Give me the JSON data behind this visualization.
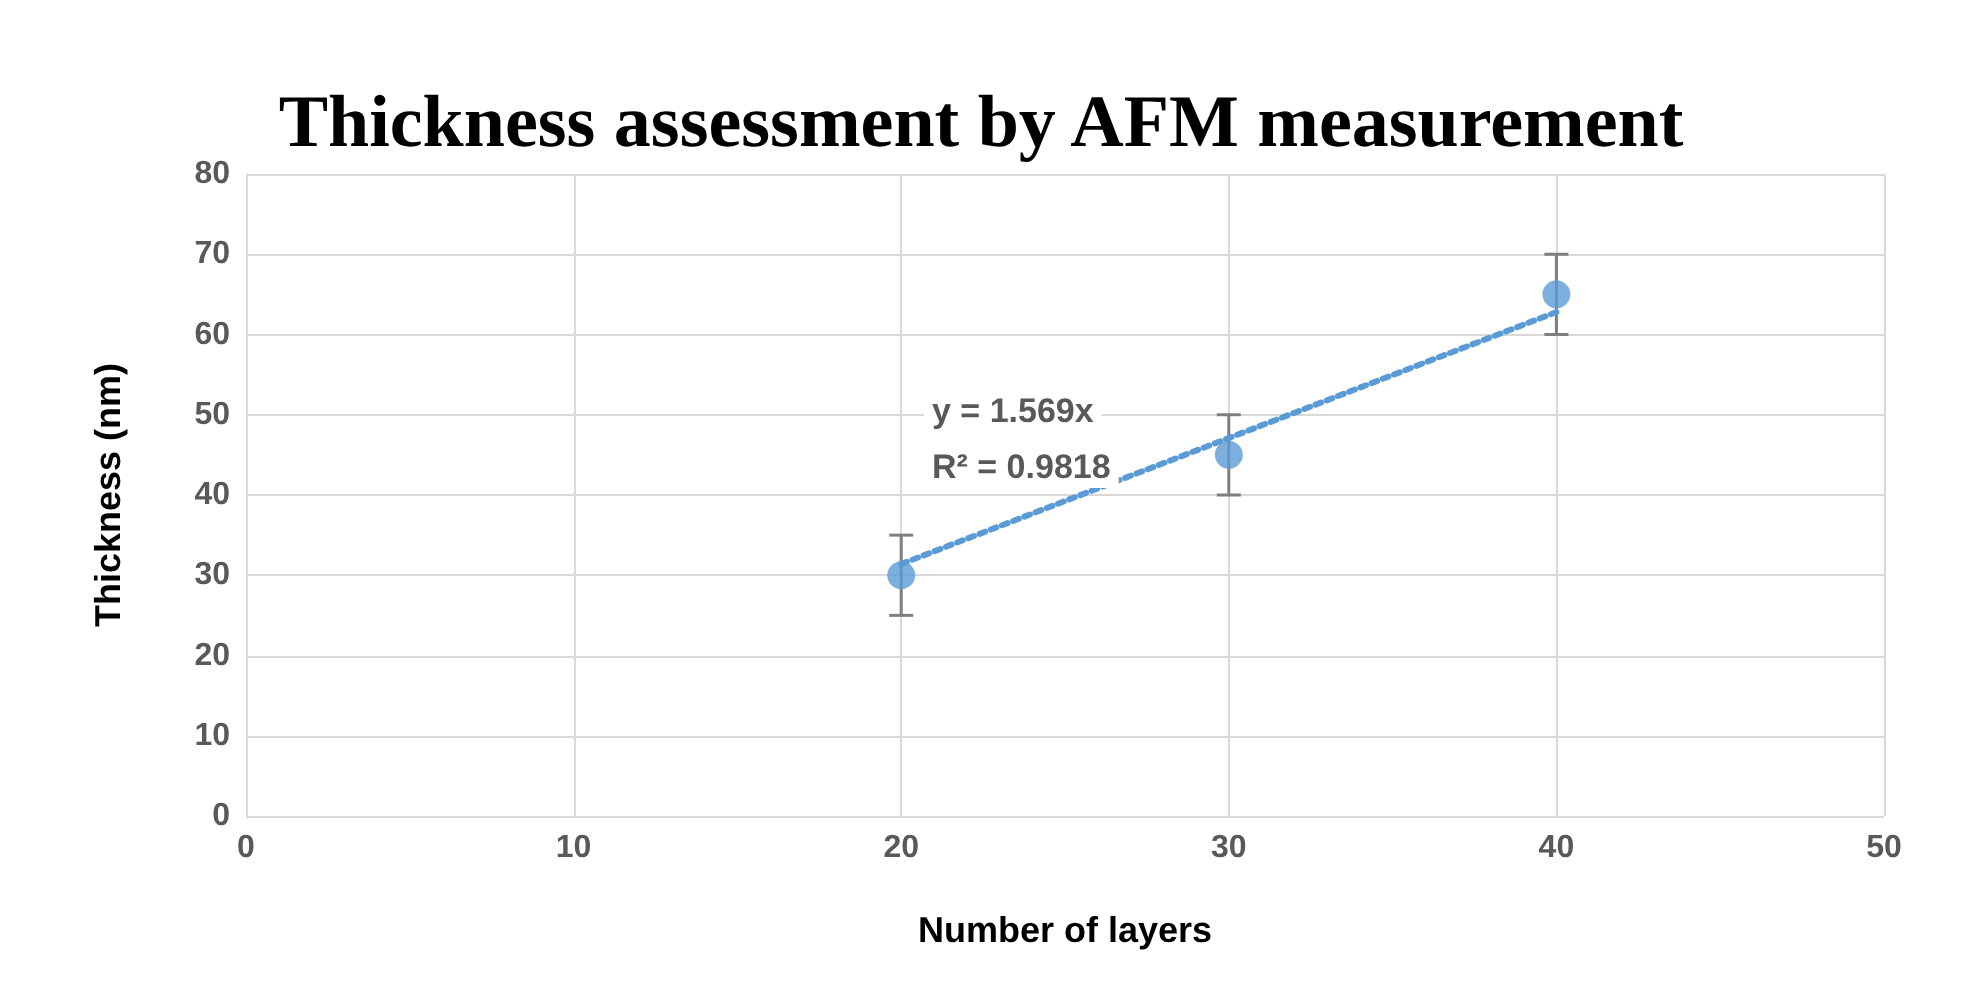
{
  "chart_data": {
    "type": "scatter",
    "title": "Thickness assessment by AFM measurement",
    "xlabel": "Number of layers",
    "ylabel": "Thickness (nm)",
    "xlim": [
      0,
      50
    ],
    "xticks": [
      0,
      10,
      20,
      30,
      40,
      50
    ],
    "ylim": [
      0,
      80
    ],
    "yticks": [
      0,
      10,
      20,
      30,
      40,
      50,
      60,
      70,
      80
    ],
    "grid": true,
    "series": [
      {
        "color": "#5b9bd5",
        "x": [
          20,
          30,
          40
        ],
        "values": [
          30,
          45,
          65
        ],
        "errors": [
          5,
          5,
          5
        ],
        "marker": "circle"
      },
      {
        "type": "line",
        "color": "#5b9bd5",
        "x": [
          20,
          40
        ],
        "values": [
          31.4,
          62.8
        ],
        "line_style": "dotted",
        "marker": "none"
      }
    ],
    "annotations": [
      "y = 1.569x",
      "R² = 0.9818"
    ]
  }
}
